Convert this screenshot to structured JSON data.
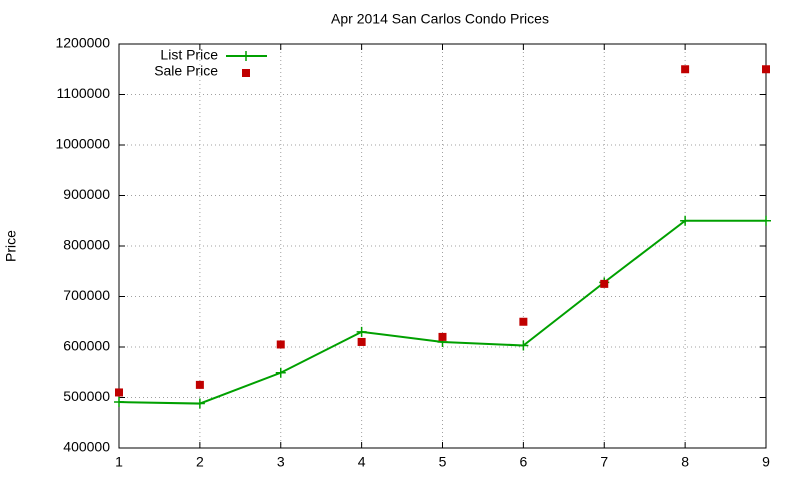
{
  "chart_data": {
    "type": "line",
    "title": "Apr 2014 San Carlos Condo Prices",
    "ylabel": "Price",
    "x": [
      1,
      2,
      3,
      4,
      5,
      6,
      7,
      8,
      9
    ],
    "series": [
      {
        "name": "List Price",
        "color": "#00a000",
        "style": "linespoints",
        "values": [
          491000,
          488000,
          549000,
          630000,
          610000,
          603000,
          728000,
          850000,
          850000
        ]
      },
      {
        "name": "Sale Price",
        "color": "#c00000",
        "style": "points",
        "values": [
          510000,
          525000,
          605000,
          610000,
          620000,
          650000,
          725000,
          1150000,
          1150000
        ]
      }
    ],
    "xlim": [
      1,
      9
    ],
    "xticks": [
      1,
      2,
      3,
      4,
      5,
      6,
      7,
      8,
      9
    ],
    "ylim": [
      400000,
      1200000
    ],
    "yticks": [
      400000,
      500000,
      600000,
      700000,
      800000,
      900000,
      1000000,
      1100000,
      1200000
    ],
    "grid": true,
    "legend": "top-left"
  }
}
